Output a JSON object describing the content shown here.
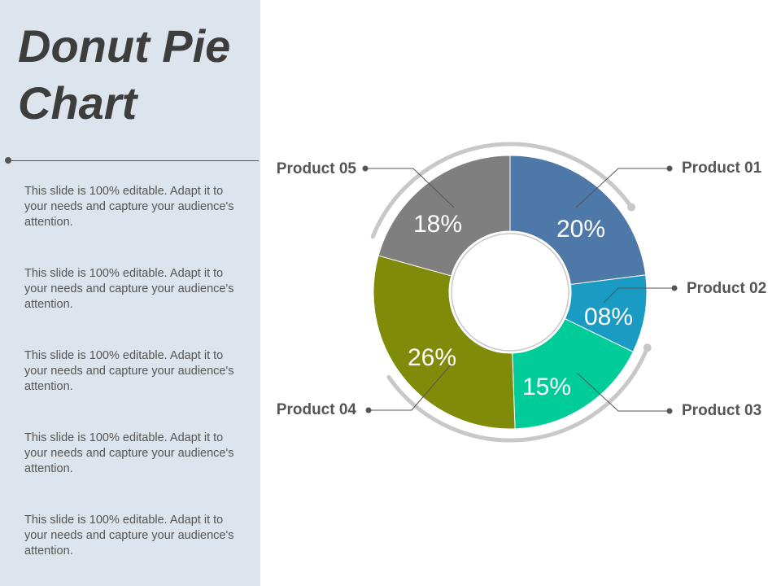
{
  "title": "Donut Pie Chart",
  "notes": [
    "This slide is 100% editable. Adapt it to your needs and capture your audience's attention.",
    "This slide is 100% editable. Adapt it to your needs and capture your audience's attention.",
    "This slide is 100% editable. Adapt it to your needs and capture your audience's attention.",
    "This slide is 100% editable. Adapt it to your needs and capture your audience's attention.",
    "This slide is 100% editable. Adapt it to your needs and capture your audience's attention."
  ],
  "chart_data": {
    "type": "pie",
    "categories": [
      "Product 01",
      "Product 02",
      "Product 03",
      "Product 04",
      "Product 05"
    ],
    "values": [
      20,
      8,
      15,
      26,
      18
    ],
    "data_labels": [
      "20%",
      "08%",
      "15%",
      "26%",
      "18%"
    ],
    "colors": [
      "#4e78a8",
      "#1a9bc4",
      "#00cc99",
      "#808b0a",
      "#7f7f7f"
    ],
    "title": "",
    "legend": "callouts"
  }
}
